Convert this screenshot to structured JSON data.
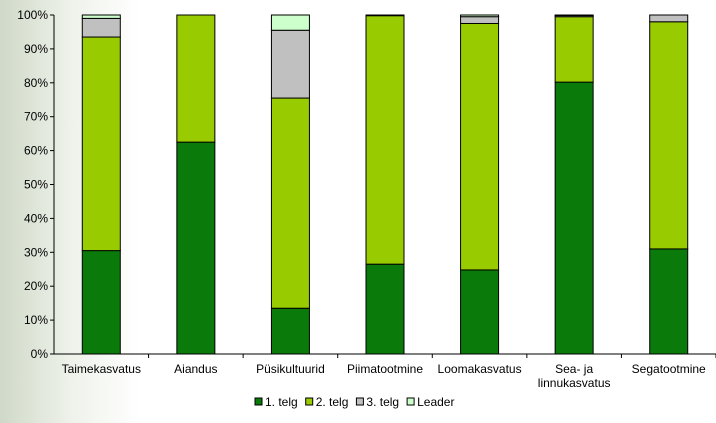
{
  "chart_data": {
    "type": "bar",
    "stacked": true,
    "percent_stacked": true,
    "categories": [
      [
        "Taimekasvatus"
      ],
      [
        "Aiandus"
      ],
      [
        "Püsikultuurid"
      ],
      [
        "Piimatootmine"
      ],
      [
        "Loomakasvatus"
      ],
      [
        "Sea- ja",
        "linnukasvatus"
      ],
      [
        "Segatootmine"
      ]
    ],
    "series": [
      {
        "name": "1. telg",
        "color": "#0a7a0a",
        "values": [
          30.5,
          62.5,
          13.5,
          26.5,
          24.8,
          80.2,
          31.0
        ]
      },
      {
        "name": "2. telg",
        "color": "#99cc00",
        "values": [
          63.0,
          37.5,
          62.0,
          73.3,
          72.7,
          19.3,
          67.0
        ]
      },
      {
        "name": "3.  telg",
        "color": "#c0c0c0",
        "values": [
          5.5,
          0.0,
          20.0,
          0.2,
          2.0,
          0.4,
          2.0
        ]
      },
      {
        "name": "Leader",
        "color": "#ccffcc",
        "values": [
          1.0,
          0.0,
          4.5,
          0.0,
          0.5,
          0.1,
          0.0
        ]
      }
    ],
    "y_ticks": [
      "0%",
      "10%",
      "20%",
      "30%",
      "40%",
      "50%",
      "60%",
      "70%",
      "80%",
      "90%",
      "100%"
    ],
    "ylim": [
      0,
      100
    ],
    "grid": false,
    "legend": "bottom",
    "title": "",
    "xlabel": "",
    "ylabel": ""
  }
}
